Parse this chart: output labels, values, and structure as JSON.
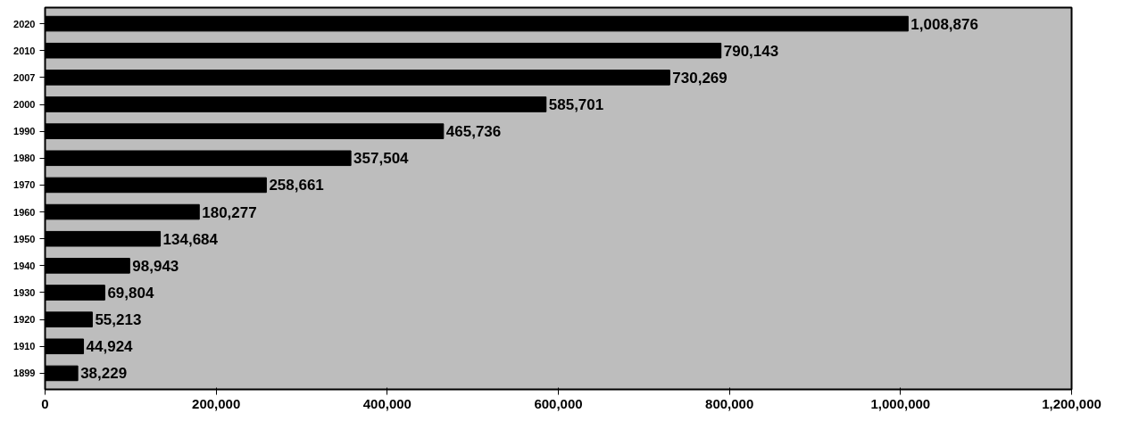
{
  "chart_data": {
    "type": "bar",
    "orientation": "horizontal",
    "categories": [
      "2020",
      "2010",
      "2007",
      "2000",
      "1990",
      "1980",
      "1970",
      "1960",
      "1950",
      "1940",
      "1930",
      "1920",
      "1910",
      "1899"
    ],
    "values": [
      1008876,
      790143,
      730269,
      585701,
      465736,
      357504,
      258661,
      180277,
      134684,
      98943,
      69804,
      55213,
      44924,
      38229
    ],
    "value_labels": [
      "1,008,876",
      "790,143",
      "730,269",
      "585,701",
      "465,736",
      "357,504",
      "258,661",
      "180,277",
      "134,684",
      "98,943",
      "69,804",
      "55,213",
      "44,924",
      "38,229"
    ],
    "color": "#000000",
    "grid": false,
    "xlim": [
      0,
      1200000
    ],
    "xticks": [
      0,
      {
        "value": 200000,
        "label": "200,000"
      },
      {
        "value": 400000,
        "label": "400,000"
      },
      {
        "value": 600000,
        "label": "600,000"
      },
      {
        "value": 800000,
        "label": "800,000"
      },
      {
        "value": 1000000,
        "label": "1,000,000"
      },
      {
        "value": 1200000,
        "label": "1,200,000"
      }
    ]
  }
}
